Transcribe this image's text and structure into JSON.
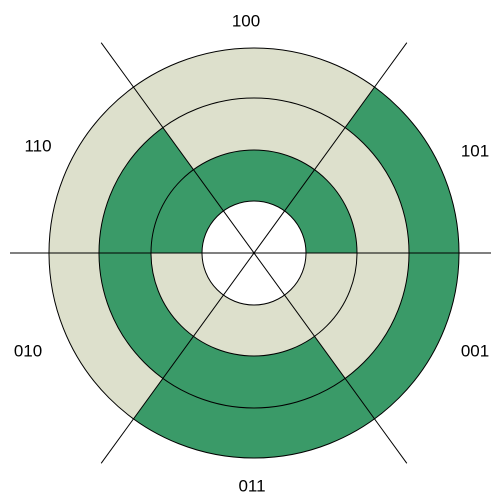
{
  "sectors": [
    {
      "label": "100"
    },
    {
      "label": "110"
    },
    {
      "label": "010"
    },
    {
      "label": "011"
    },
    {
      "label": "001"
    },
    {
      "label": "101"
    }
  ]
}
